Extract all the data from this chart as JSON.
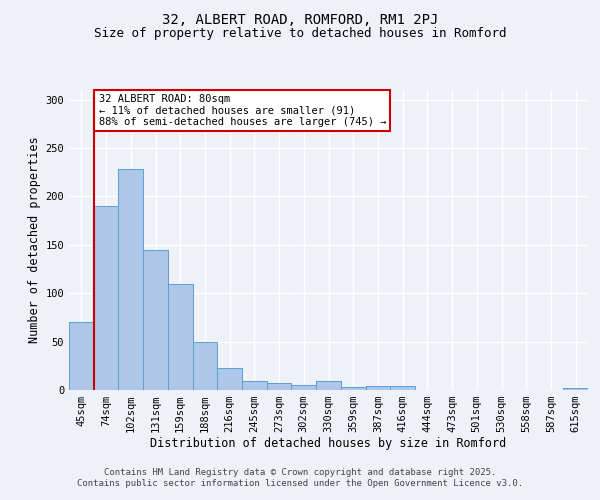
{
  "title": "32, ALBERT ROAD, ROMFORD, RM1 2PJ",
  "subtitle": "Size of property relative to detached houses in Romford",
  "xlabel": "Distribution of detached houses by size in Romford",
  "ylabel": "Number of detached properties",
  "categories": [
    "45sqm",
    "74sqm",
    "102sqm",
    "131sqm",
    "159sqm",
    "188sqm",
    "216sqm",
    "245sqm",
    "273sqm",
    "302sqm",
    "330sqm",
    "359sqm",
    "387sqm",
    "416sqm",
    "444sqm",
    "473sqm",
    "501sqm",
    "530sqm",
    "558sqm",
    "587sqm",
    "615sqm"
  ],
  "values": [
    70,
    190,
    228,
    145,
    110,
    50,
    23,
    9,
    7,
    5,
    9,
    3,
    4,
    4,
    0,
    0,
    0,
    0,
    0,
    0,
    2
  ],
  "bar_color": "#aec6e8",
  "bar_edge_color": "#5a9fd4",
  "vline_x": 0.5,
  "vline_color": "#cc0000",
  "annotation_text": "32 ALBERT ROAD: 80sqm\n← 11% of detached houses are smaller (91)\n88% of semi-detached houses are larger (745) →",
  "annotation_box_color": "#ffffff",
  "annotation_box_edge_color": "#cc0000",
  "ylim": [
    0,
    310
  ],
  "yticks": [
    0,
    50,
    100,
    150,
    200,
    250,
    300
  ],
  "background_color": "#eef2f8",
  "grid_color": "#ffffff",
  "footer": "Contains HM Land Registry data © Crown copyright and database right 2025.\nContains public sector information licensed under the Open Government Licence v3.0.",
  "title_fontsize": 10,
  "subtitle_fontsize": 9,
  "axis_label_fontsize": 8.5,
  "tick_fontsize": 7.5,
  "annotation_fontsize": 7.5,
  "footer_fontsize": 6.5
}
